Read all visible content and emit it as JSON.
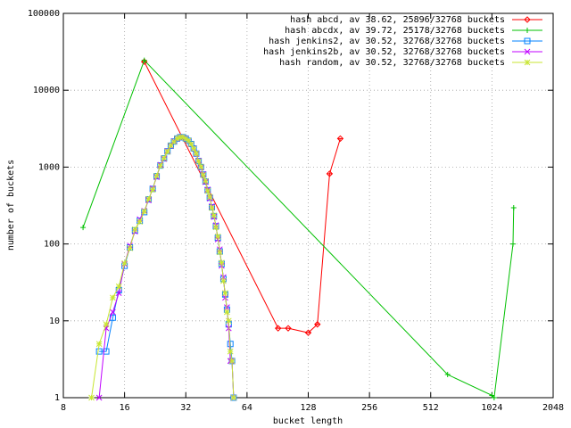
{
  "chart_data": {
    "type": "line",
    "xlabel": "bucket length",
    "ylabel": "number of buckets",
    "xscale": "log",
    "yscale": "log",
    "grid": true,
    "legend": "top-right",
    "xlim": [
      8,
      2048
    ],
    "xticks": [
      8,
      16,
      32,
      64,
      128,
      256,
      512,
      1024,
      2048
    ],
    "ylim": [
      1,
      100000
    ],
    "yticks": [
      1,
      10,
      100,
      1000,
      10000,
      100000
    ],
    "series": [
      {
        "name": "hash abcd, av 38.62, 25896/32768 buckets",
        "color": "#ff0000",
        "marker": "diamond",
        "x": [
          20,
          91,
          102,
          128,
          142,
          163,
          184
        ],
        "values": [
          23500,
          8,
          8,
          7,
          9,
          820,
          2350
        ]
      },
      {
        "name": "hash abcdx, av 39.72, 25178/32768 buckets",
        "color": "#00c000",
        "marker": "plus",
        "x": [
          10,
          20,
          620,
          1024,
          1050,
          1300,
          1310
        ],
        "values": [
          164,
          24500,
          2,
          1.07,
          1,
          100,
          296
        ]
      },
      {
        "name": "hash jenkins2, av 30.52, 32768/32768 buckets",
        "color": "#0080ff",
        "marker": "square",
        "x": [
          12,
          13,
          14,
          15,
          16,
          17,
          18,
          19,
          20,
          21,
          22,
          23,
          24,
          25,
          26,
          27,
          28,
          29,
          30,
          31,
          32,
          33,
          34,
          35,
          36,
          37,
          38,
          39,
          40,
          41,
          42,
          43,
          44,
          45,
          46,
          47,
          48,
          49,
          50,
          51,
          52,
          53,
          54,
          55
        ],
        "values": [
          4,
          4,
          11,
          25,
          52,
          90,
          150,
          200,
          260,
          380,
          520,
          760,
          1050,
          1300,
          1600,
          1900,
          2150,
          2350,
          2450,
          2450,
          2350,
          2200,
          2000,
          1750,
          1500,
          1200,
          1000,
          800,
          650,
          500,
          400,
          300,
          230,
          170,
          120,
          80,
          55,
          35,
          22,
          14,
          9,
          5,
          3,
          1
        ]
      },
      {
        "name": "hash jenkins2b, av 30.52, 32768/32768 buckets",
        "color": "#c000ff",
        "marker": "cross",
        "x": [
          12,
          13,
          14,
          15,
          16,
          17,
          18,
          19,
          20,
          21,
          22,
          23,
          24,
          25,
          26,
          27,
          28,
          29,
          30,
          31,
          32,
          33,
          34,
          35,
          36,
          37,
          38,
          39,
          40,
          41,
          42,
          43,
          44,
          45,
          46,
          47,
          48,
          49,
          50,
          51,
          52,
          53,
          54,
          55
        ],
        "values": [
          1,
          8,
          13,
          23,
          55,
          95,
          145,
          210,
          270,
          370,
          530,
          740,
          1070,
          1280,
          1620,
          1880,
          2170,
          2330,
          2460,
          2440,
          2360,
          2190,
          1980,
          1760,
          1490,
          1210,
          990,
          810,
          640,
          510,
          390,
          310,
          225,
          175,
          115,
          85,
          52,
          37,
          20,
          15,
          8,
          3,
          3,
          1
        ]
      },
      {
        "name": "hash random, av 30.52, 32768/32768 buckets",
        "color": "#c8e632",
        "marker": "star",
        "x": [
          11,
          12,
          13,
          14,
          15,
          16,
          17,
          18,
          19,
          20,
          21,
          22,
          23,
          24,
          25,
          26,
          27,
          28,
          29,
          30,
          31,
          32,
          33,
          34,
          35,
          36,
          37,
          38,
          39,
          40,
          41,
          42,
          43,
          44,
          45,
          46,
          47,
          48,
          49,
          50,
          51,
          52,
          53,
          54,
          55
        ],
        "values": [
          1,
          5,
          9,
          20,
          28,
          56,
          88,
          155,
          195,
          265,
          385,
          510,
          770,
          1040,
          1310,
          1590,
          1910,
          2140,
          2360,
          2440,
          2460,
          2340,
          2210,
          1990,
          1740,
          1510,
          1190,
          1010,
          790,
          660,
          490,
          410,
          295,
          235,
          165,
          125,
          78,
          57,
          33,
          23,
          13,
          10,
          4,
          3,
          1
        ]
      }
    ]
  }
}
